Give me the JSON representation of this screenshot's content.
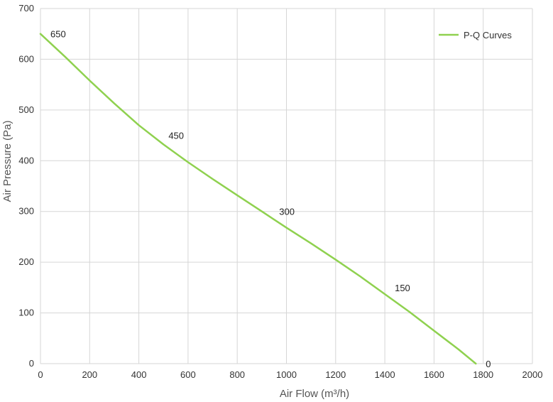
{
  "chart_data": {
    "type": "line",
    "xlabel": "Air Flow  (m³/h)",
    "ylabel": "Air Pressure  (Pa)",
    "xlim": [
      0,
      2000
    ],
    "ylim": [
      0,
      700
    ],
    "xticks": [
      0,
      200,
      400,
      600,
      800,
      1000,
      1200,
      1400,
      1600,
      1800,
      2000
    ],
    "yticks": [
      0,
      100,
      200,
      300,
      400,
      500,
      600,
      700
    ],
    "grid": true,
    "legend_position": "top-right",
    "series": [
      {
        "name": "P-Q Curves",
        "color": "#8fd14f",
        "x": [
          0,
          100,
          200,
          300,
          400,
          500,
          600,
          700,
          800,
          900,
          1000,
          1100,
          1200,
          1300,
          1400,
          1500,
          1600,
          1700,
          1770
        ],
        "y": [
          650,
          605,
          558,
          513,
          470,
          432,
          397,
          364,
          332,
          300,
          268,
          237,
          205,
          172,
          137,
          102,
          65,
          28,
          0
        ]
      }
    ],
    "annotations": [
      {
        "text": "650",
        "x": 0,
        "y": 650
      },
      {
        "text": "450",
        "x": 480,
        "y": 450
      },
      {
        "text": "300",
        "x": 930,
        "y": 300
      },
      {
        "text": "150",
        "x": 1400,
        "y": 150
      },
      {
        "text": "0",
        "x": 1770,
        "y": 0
      }
    ]
  }
}
